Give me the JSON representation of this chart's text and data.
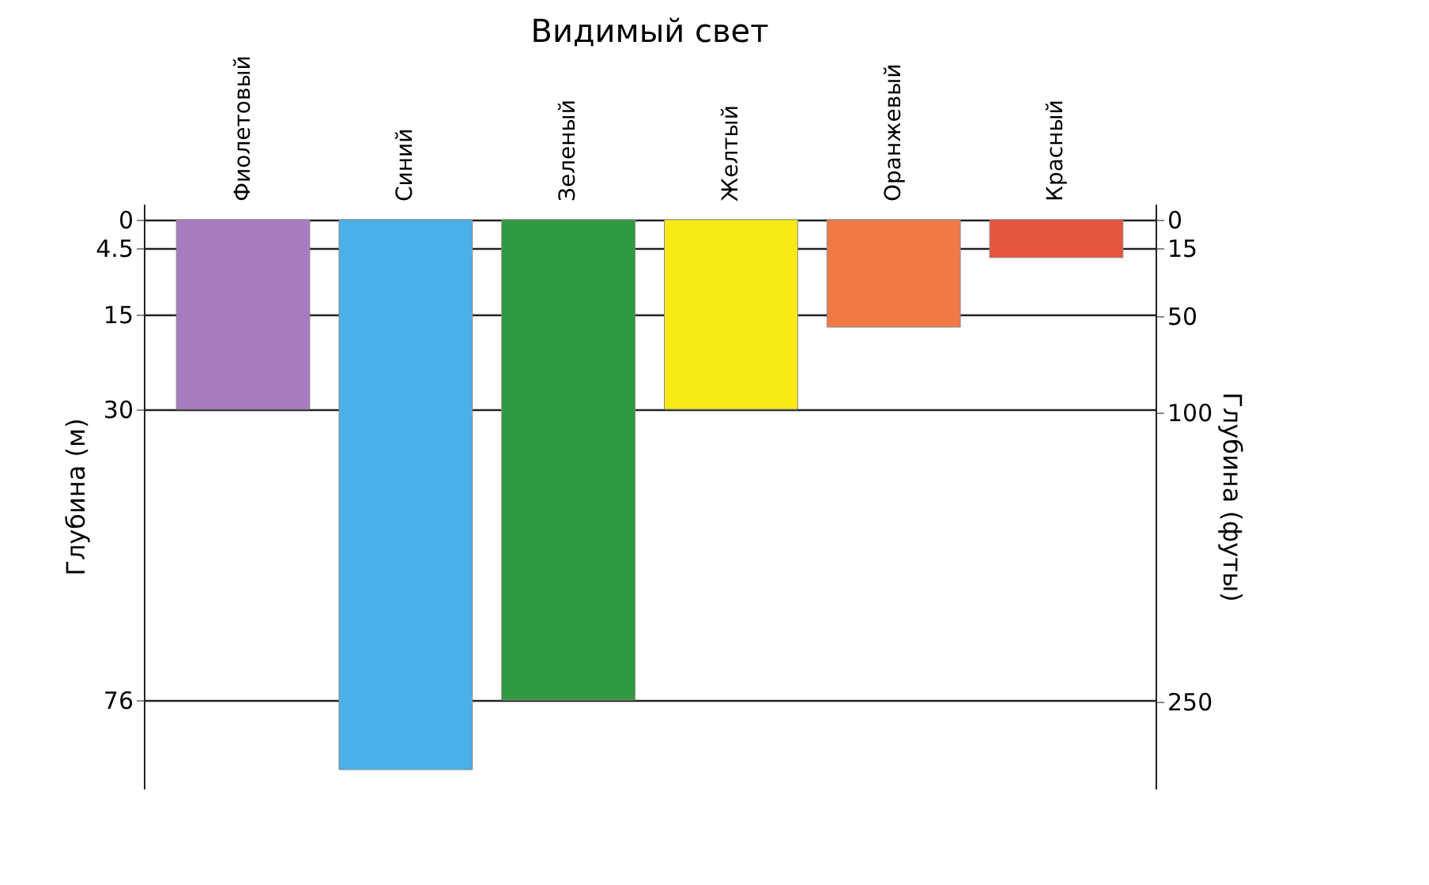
{
  "chart_data": {
    "type": "bar",
    "title": "Видимый свет",
    "ylabel": "Глубина (м)",
    "y2label": "Глубина (футы)",
    "categories": [
      "Фиолетовый",
      "Синий",
      "Зеленый",
      "Желтый",
      "Оранжевый",
      "Красный"
    ],
    "values": [
      30,
      87,
      76,
      30,
      17,
      6
    ],
    "colors": [
      "#a77bbf",
      "#4ab0ea",
      "#2e9a3f",
      "#f7ea15",
      "#f07a45",
      "#e5553e"
    ],
    "ylim": [
      90,
      -2.5
    ],
    "yticks": [
      0,
      4.5,
      15,
      30,
      76
    ],
    "y2lim": [
      295,
      -8
    ],
    "y2ticks": [
      0,
      15,
      50,
      100,
      250
    ],
    "grid": "y"
  }
}
